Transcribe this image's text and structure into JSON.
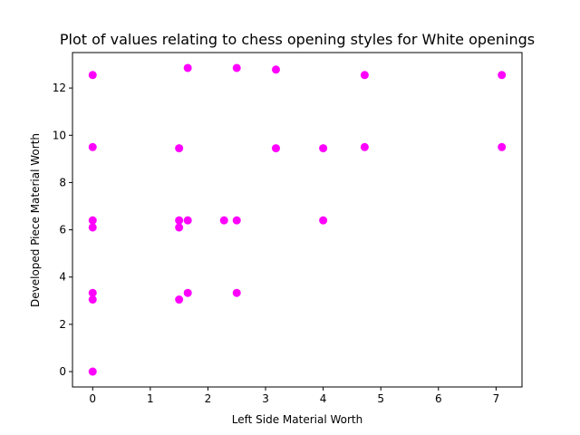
{
  "chart_data": {
    "type": "scatter",
    "title": "Plot of values relating to chess opening styles for White openings",
    "xlabel": "Left Side Material Worth",
    "ylabel": "Developed Piece Material Worth",
    "xlim": [
      -0.35,
      7.45
    ],
    "ylim": [
      -0.65,
      13.5
    ],
    "xticks": [
      0,
      1,
      2,
      3,
      4,
      5,
      6,
      7
    ],
    "yticks": [
      0,
      2,
      4,
      6,
      8,
      10,
      12
    ],
    "grid": false,
    "marker_color": "#ff00ff",
    "points": [
      {
        "x": 0,
        "y": 12.55
      },
      {
        "x": 0,
        "y": 9.5
      },
      {
        "x": 0,
        "y": 6.4
      },
      {
        "x": 0,
        "y": 6.1
      },
      {
        "x": 0,
        "y": 3.33
      },
      {
        "x": 0,
        "y": 3.05
      },
      {
        "x": 0,
        "y": 0
      },
      {
        "x": 1.5,
        "y": 9.45
      },
      {
        "x": 1.5,
        "y": 6.4
      },
      {
        "x": 1.5,
        "y": 6.1
      },
      {
        "x": 1.5,
        "y": 3.05
      },
      {
        "x": 1.65,
        "y": 12.85
      },
      {
        "x": 1.65,
        "y": 6.4
      },
      {
        "x": 1.65,
        "y": 3.33
      },
      {
        "x": 2.28,
        "y": 6.4
      },
      {
        "x": 2.5,
        "y": 12.85
      },
      {
        "x": 2.5,
        "y": 6.4
      },
      {
        "x": 2.5,
        "y": 3.33
      },
      {
        "x": 3.18,
        "y": 12.78
      },
      {
        "x": 3.18,
        "y": 9.45
      },
      {
        "x": 4.0,
        "y": 9.45
      },
      {
        "x": 4.0,
        "y": 6.4
      },
      {
        "x": 4.72,
        "y": 12.55
      },
      {
        "x": 4.72,
        "y": 9.5
      },
      {
        "x": 7.1,
        "y": 12.55
      },
      {
        "x": 7.1,
        "y": 9.5
      }
    ]
  }
}
